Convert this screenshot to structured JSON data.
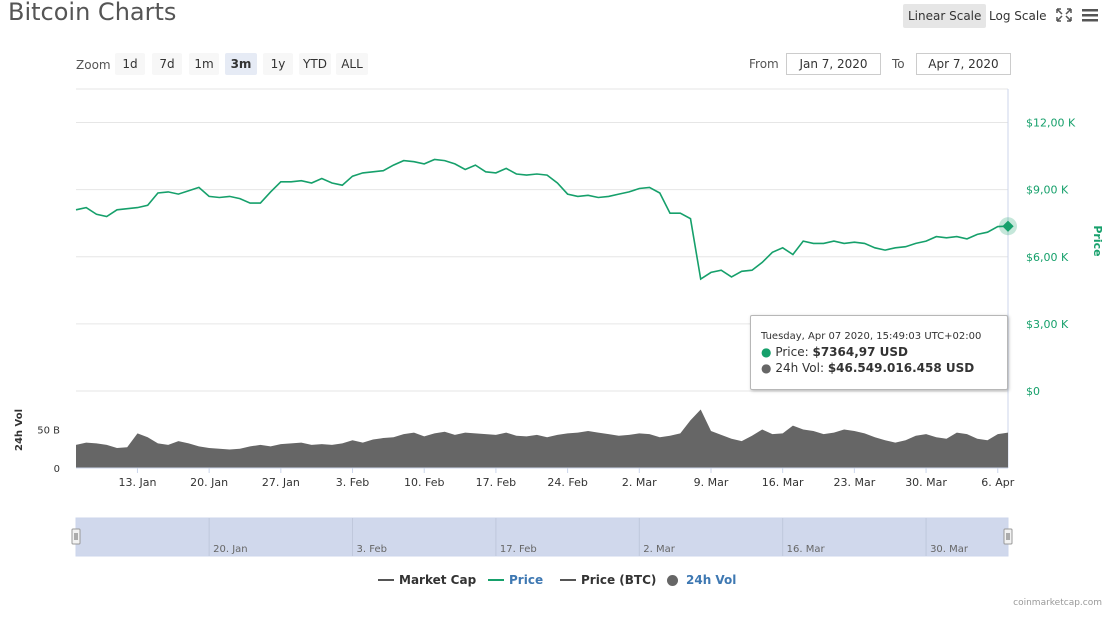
{
  "header": {
    "title": "Bitcoin Charts",
    "linear_scale_label": "Linear Scale",
    "log_scale_label": "Log Scale"
  },
  "zoom": {
    "label": "Zoom",
    "options": [
      "1d",
      "7d",
      "1m",
      "3m",
      "1y",
      "YTD",
      "ALL"
    ],
    "selected": "3m"
  },
  "range": {
    "from_label": "From",
    "from_value": "Jan 7, 2020",
    "to_label": "To",
    "to_value": "Apr 7, 2020"
  },
  "tooltip": {
    "timestamp": "Tuesday, Apr 07 2020, 15:49:03 UTC+02:00",
    "price_label": "Price:",
    "price_value": "$7364,97 USD",
    "vol_label": "24h Vol:",
    "vol_value": "$46.549.016.458 USD"
  },
  "legend": {
    "market_cap": "Market Cap",
    "price": "Price",
    "price_btc": "Price (BTC)",
    "vol": "24h Vol"
  },
  "credit": "coinmarketcap.com",
  "colors": {
    "price": "#16a06b",
    "volume": "#666666",
    "navigator": "#d0d8ec",
    "legend_active": "#3e78b2"
  },
  "chart_data": {
    "type": "line",
    "price_axis_label": "Price",
    "price_ticks": [
      "$0",
      "$3,00 K",
      "$6,00 K",
      "$9,00 K",
      "$12,00 K"
    ],
    "price_ylim": [
      0,
      13500
    ],
    "vol_axis_label": "24h Vol",
    "vol_ticks": [
      "0",
      "50 B"
    ],
    "vol_ylim": [
      0,
      100
    ],
    "x_ticks": [
      "13. Jan",
      "20. Jan",
      "27. Jan",
      "3. Feb",
      "10. Feb",
      "17. Feb",
      "24. Feb",
      "2. Mar",
      "9. Mar",
      "16. Mar",
      "23. Mar",
      "30. Mar",
      "6. Apr"
    ],
    "navigator_ticks": [
      "20. Jan",
      "3. Feb",
      "17. Feb",
      "2. Mar",
      "16. Mar",
      "30. Mar"
    ],
    "x": [
      0,
      1,
      2,
      3,
      4,
      5,
      6,
      7,
      8,
      9,
      10,
      11,
      12,
      13,
      14,
      15,
      16,
      17,
      18,
      19,
      20,
      21,
      22,
      23,
      24,
      25,
      26,
      27,
      28,
      29,
      30,
      31,
      32,
      33,
      34,
      35,
      36,
      37,
      38,
      39,
      40,
      41,
      42,
      43,
      44,
      45,
      46,
      47,
      48,
      49,
      50,
      51,
      52,
      53,
      54,
      55,
      56,
      57,
      58,
      59,
      60,
      61,
      62,
      63,
      64,
      65,
      66,
      67,
      68,
      69,
      70,
      71,
      72,
      73,
      74,
      75,
      76,
      77,
      78,
      79,
      80,
      81,
      82,
      83,
      84,
      85,
      86,
      87,
      88,
      89,
      90,
      91
    ],
    "price": [
      8100,
      8200,
      7900,
      7800,
      8100,
      8150,
      8200,
      8300,
      8850,
      8900,
      8800,
      8950,
      9100,
      8700,
      8650,
      8700,
      8600,
      8400,
      8400,
      8900,
      9350,
      9350,
      9400,
      9300,
      9500,
      9300,
      9200,
      9600,
      9750,
      9800,
      9850,
      10100,
      10300,
      10250,
      10150,
      10350,
      10300,
      10150,
      9900,
      10100,
      9800,
      9750,
      9950,
      9700,
      9650,
      9700,
      9650,
      9300,
      8800,
      8700,
      8750,
      8650,
      8700,
      8800,
      8900,
      9050,
      9100,
      8850,
      7950,
      7950,
      7700,
      5000,
      5300,
      5400,
      5100,
      5350,
      5400,
      5750,
      6200,
      6400,
      6100,
      6700,
      6600,
      6600,
      6700,
      6600,
      6650,
      6600,
      6400,
      6300,
      6400,
      6450,
      6600,
      6700,
      6900,
      6850,
      6900,
      6800,
      7000,
      7100,
      7350,
      7364.97
    ],
    "volume": [
      30,
      33,
      32,
      30,
      26,
      27,
      45,
      40,
      32,
      30,
      35,
      32,
      28,
      26,
      25,
      24,
      25,
      28,
      30,
      28,
      31,
      32,
      33,
      30,
      31,
      30,
      32,
      36,
      33,
      37,
      39,
      40,
      44,
      46,
      41,
      45,
      47,
      43,
      46,
      45,
      44,
      43,
      46,
      42,
      41,
      43,
      40,
      43,
      45,
      46,
      48,
      46,
      44,
      42,
      43,
      45,
      44,
      40,
      42,
      45,
      62,
      76,
      48,
      43,
      38,
      35,
      42,
      50,
      44,
      45,
      55,
      50,
      48,
      44,
      46,
      50,
      48,
      45,
      40,
      36,
      33,
      36,
      42,
      44,
      40,
      38,
      46,
      44,
      38,
      36,
      44,
      46
    ]
  }
}
